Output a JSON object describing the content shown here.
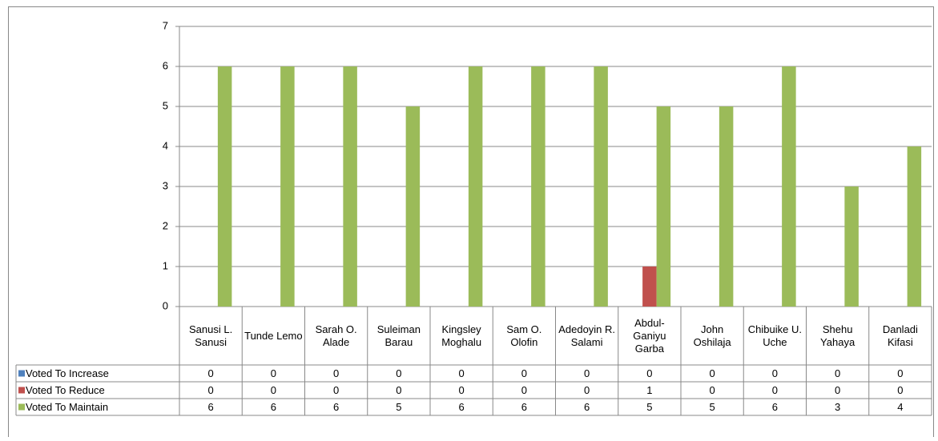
{
  "chart_data": {
    "type": "bar",
    "categories": [
      "Sanusi L. Sanusi",
      "Tunde Lemo",
      "Sarah O. Alade",
      "Suleiman Barau",
      "Kingsley Moghalu",
      "Sam O. Olofin",
      "Adedoyin R. Salami",
      "Abdul-Ganiyu Garba",
      "John Oshilaja",
      "Chibuike U. Uche",
      "Shehu Yahaya",
      "Danladi Kifasi"
    ],
    "series": [
      {
        "name": "Voted To Increase",
        "color": "#4f81bd",
        "values": [
          0,
          0,
          0,
          0,
          0,
          0,
          0,
          0,
          0,
          0,
          0,
          0
        ]
      },
      {
        "name": "Voted To Reduce",
        "color": "#c0504d",
        "values": [
          0,
          0,
          0,
          0,
          0,
          0,
          0,
          1,
          0,
          0,
          0,
          0
        ]
      },
      {
        "name": "Voted To Maintain",
        "color": "#9bbb59",
        "values": [
          6,
          6,
          6,
          5,
          6,
          6,
          6,
          5,
          5,
          6,
          3,
          4
        ]
      }
    ],
    "ylim": [
      0,
      7
    ],
    "yticks": [
      0,
      1,
      2,
      3,
      4,
      5,
      6,
      7
    ],
    "grid": true
  }
}
